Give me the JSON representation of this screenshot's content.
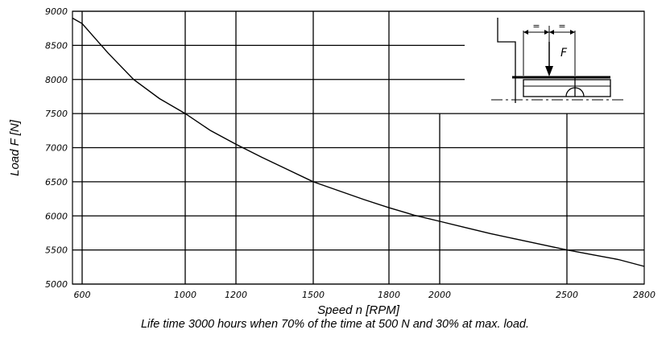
{
  "chart_data": {
    "type": "line",
    "xlabel": "Speed n [RPM]",
    "ylabel": "Load F [N]",
    "x_ticks": [
      600,
      1000,
      1200,
      1500,
      1800,
      2000,
      2500,
      2800
    ],
    "y_ticks": [
      5000,
      5500,
      6000,
      6500,
      7000,
      7500,
      8000,
      8500,
      9000
    ],
    "xlim": [
      570,
      2800
    ],
    "ylim": [
      5000,
      9000
    ],
    "grid": true,
    "x_scale": "nonlinear",
    "series": [
      {
        "x": [
          570,
          600,
          700,
          800,
          900,
          1000,
          1100,
          1200,
          1300,
          1400,
          1500,
          1600,
          1700,
          1800,
          1900,
          2000,
          2100,
          2200,
          2300,
          2400,
          2500,
          2600,
          2700,
          2800
        ],
        "y": [
          8900,
          8820,
          8390,
          8000,
          7720,
          7500,
          7250,
          7050,
          6860,
          6680,
          6500,
          6370,
          6240,
          6120,
          6010,
          5920,
          5830,
          5740,
          5660,
          5580,
          5500,
          5430,
          5360,
          5260
        ]
      }
    ],
    "inset": {
      "force_label": "F",
      "dim_marks": [
        "=",
        "="
      ]
    }
  },
  "footnote": "Life time 3000 hours when 70% of the time at 500 N and 30% at max. load."
}
